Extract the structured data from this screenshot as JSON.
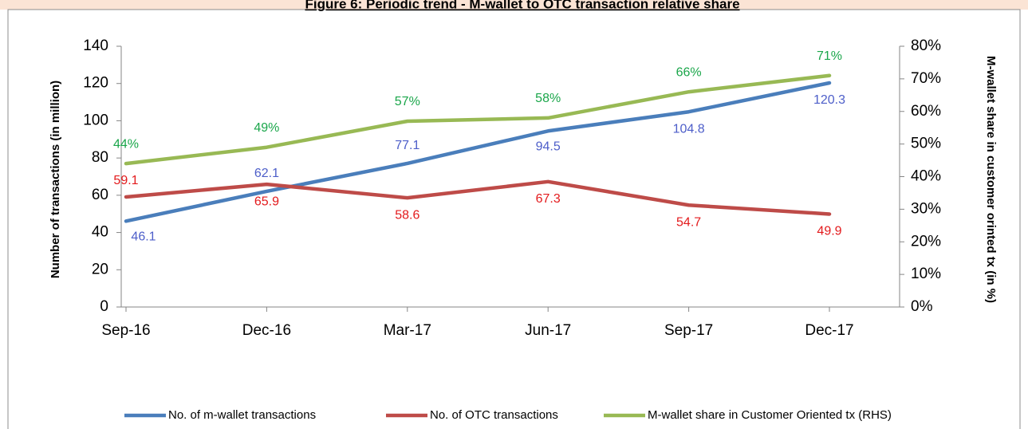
{
  "chart_data": {
    "type": "line",
    "title": "Figure 6: Periodic trend - M-wallet to OTC transaction relative share",
    "y_label": "Number of transactions (in million)",
    "y2_label": "M-wallet share in customer orinted tx (in %)",
    "categories": [
      "Sep-16",
      "Dec-16",
      "Mar-17",
      "Jun-17",
      "Sep-17",
      "Dec-17"
    ],
    "series": [
      {
        "name": "No. of m-wallet transactions",
        "color": "#4a7ebb",
        "label_color": "#4d5ec9",
        "values": [
          46.1,
          62.1,
          77.1,
          94.5,
          104.8,
          120.3
        ]
      },
      {
        "name": "No. of OTC transactions",
        "color": "#be4b48",
        "label_color": "#e31a1c",
        "values": [
          59.1,
          65.9,
          58.6,
          67.3,
          54.7,
          49.9
        ]
      },
      {
        "name": "M-wallet share in Customer Oriented tx (RHS)",
        "color": "#98b954",
        "label_color": "#1aa64a",
        "axis": "y2",
        "values": [
          44,
          49,
          57,
          58,
          66,
          71
        ],
        "value_labels": [
          "44%",
          "49%",
          "57%",
          "58%",
          "66%",
          "71%"
        ]
      }
    ],
    "ylim": [
      0,
      140
    ],
    "yticks": [
      0,
      20,
      40,
      60,
      80,
      100,
      120,
      140
    ],
    "y2lim": [
      0,
      80
    ],
    "y2ticks": [
      {
        "value": 0,
        "label": "0%"
      },
      {
        "value": 10,
        "label": "10%"
      },
      {
        "value": 20,
        "label": "20%"
      },
      {
        "value": 30,
        "label": "30%"
      },
      {
        "value": 40,
        "label": "40%"
      },
      {
        "value": 50,
        "label": "50%"
      },
      {
        "value": 60,
        "label": "60%"
      },
      {
        "value": 70,
        "label": "70%"
      },
      {
        "value": 80,
        "label": "80%"
      }
    ],
    "legend": "bottom",
    "grid": false
  }
}
